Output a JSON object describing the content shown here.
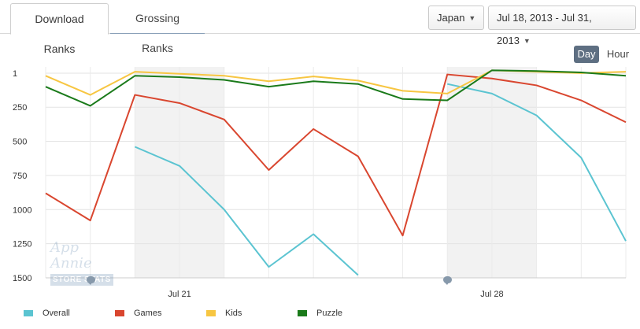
{
  "tabs": [
    {
      "label": "Download Ranks",
      "active": true
    },
    {
      "label": "Grossing Ranks",
      "active": false
    }
  ],
  "filters": {
    "country": "Japan",
    "date_range": "Jul 18, 2013 - Jul 31, 2013"
  },
  "granularity": {
    "options": [
      "Day",
      "Hour"
    ],
    "selected": "Day"
  },
  "watermark": {
    "line1": "App Annie",
    "line2": "STORE STATS"
  },
  "colors": {
    "overall": "#5bc4d1",
    "games": "#d9462f",
    "kids": "#f7c642",
    "puzzle": "#1a7a1a",
    "weekend_band": "#f2f2f2",
    "selected_toggle": "#5e6f82"
  },
  "icons": [
    "chevron-down-icon",
    "comment-icon"
  ],
  "chart_data": {
    "type": "line",
    "x": [
      "Jul 18",
      "Jul 19",
      "Jul 20",
      "Jul 21",
      "Jul 22",
      "Jul 23",
      "Jul 24",
      "Jul 25",
      "Jul 26",
      "Jul 27",
      "Jul 28",
      "Jul 29",
      "Jul 30",
      "Jul 31"
    ],
    "x_tick_labels": [
      {
        "x": "Jul 21",
        "label": "Jul 21"
      },
      {
        "x": "Jul 28",
        "label": "Jul 28"
      }
    ],
    "y_tick_labels": [
      "1",
      "250",
      "500",
      "750",
      "1000",
      "1250",
      "1500"
    ],
    "y_ticks": [
      1,
      250,
      500,
      750,
      1000,
      1250,
      1500
    ],
    "ylim": [
      1,
      1500
    ],
    "y_reversed": true,
    "weekend_bands": [
      [
        "Jul 20",
        "Jul 22"
      ],
      [
        "Jul 27",
        "Jul 29"
      ]
    ],
    "grid": true,
    "legend_position": "bottom",
    "series": [
      {
        "name": "Overall",
        "color": "#5bc4d1",
        "values": [
          null,
          null,
          540,
          680,
          1000,
          1420,
          1180,
          1480,
          null,
          80,
          150,
          310,
          620,
          1230
        ]
      },
      {
        "name": "Games",
        "color": "#d9462f",
        "values": [
          880,
          1080,
          160,
          220,
          340,
          710,
          410,
          610,
          1190,
          10,
          40,
          90,
          200,
          360
        ]
      },
      {
        "name": "Kids",
        "color": "#f7c642",
        "values": [
          20,
          160,
          -10,
          5,
          20,
          60,
          25,
          55,
          130,
          150,
          -20,
          -10,
          0,
          -10
        ]
      },
      {
        "name": "Puzzle",
        "color": "#1a7a1a",
        "values": [
          100,
          240,
          20,
          30,
          50,
          100,
          60,
          80,
          190,
          200,
          -20,
          -15,
          -5,
          20
        ]
      }
    ]
  }
}
